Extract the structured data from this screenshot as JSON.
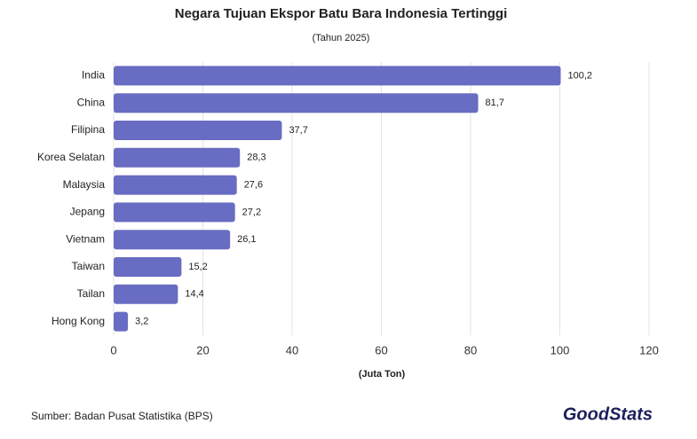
{
  "chart_data": {
    "type": "hbar",
    "title": "Negara Tujuan Ekspor Batu Bara Indonesia Tertinggi",
    "subtitle": "(Tahun 2025)",
    "x_label": "(Juta Ton)",
    "source": "Sumber: Badan Pusat Statistika (BPS)",
    "logo": "GoodStats",
    "categories": [
      "India",
      "China",
      "Filipina",
      "Korea Selatan",
      "Malaysia",
      "Jepang",
      "Vietnam",
      "Taiwan",
      "Tailan",
      "Hong Kong"
    ],
    "values": [
      100.2,
      81.7,
      37.7,
      28.3,
      27.6,
      27.2,
      26.1,
      15.2,
      14.4,
      3.2
    ],
    "value_labels": [
      "100,2",
      "81,7",
      "37,7",
      "28,3",
      "27,6",
      "27,2",
      "26,1",
      "15,2",
      "14,4",
      "3,2"
    ],
    "color": "#686cc2",
    "xlim": [
      0,
      120
    ],
    "xticks": [
      0,
      20,
      40,
      60,
      80,
      100,
      120
    ],
    "grid": true
  }
}
